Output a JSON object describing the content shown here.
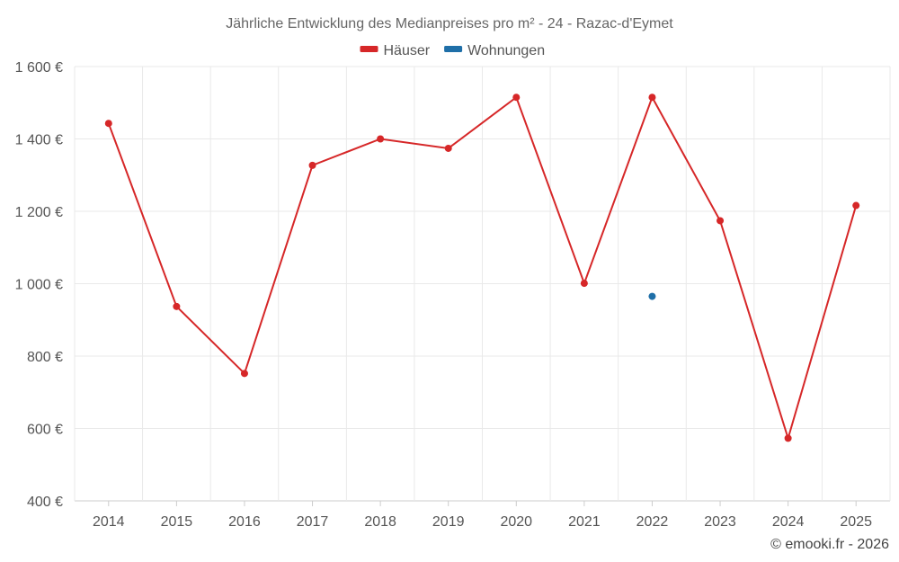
{
  "chart_data": {
    "type": "line",
    "title": "Jährliche Entwicklung des Medianpreises pro m² - 24 - Razac-d'Eymet",
    "categories": [
      "2014",
      "2015",
      "2016",
      "2017",
      "2018",
      "2019",
      "2020",
      "2021",
      "2022",
      "2023",
      "2024",
      "2025"
    ],
    "series": [
      {
        "name": "Häuser",
        "color": "#d62728",
        "values": [
          1443,
          937,
          752,
          1327,
          1400,
          1374,
          1515,
          1001,
          1515,
          1174,
          573,
          1216
        ]
      },
      {
        "name": "Wohnungen",
        "color": "#1f6fa8",
        "values": [
          null,
          null,
          null,
          null,
          null,
          null,
          null,
          null,
          965,
          null,
          null,
          null
        ]
      }
    ],
    "ylim": [
      400,
      1600
    ],
    "yticks": [
      400,
      600,
      800,
      1000,
      1200,
      1400,
      1600
    ],
    "ytick_labels": [
      "400 €",
      "600 €",
      "800 €",
      "1 000 €",
      "1 200 €",
      "1 400 €",
      "1 600 €"
    ],
    "xlabel": "",
    "ylabel": "",
    "grid": true,
    "legend_position": "top-center"
  },
  "credit": "© emooki.fr - 2026"
}
